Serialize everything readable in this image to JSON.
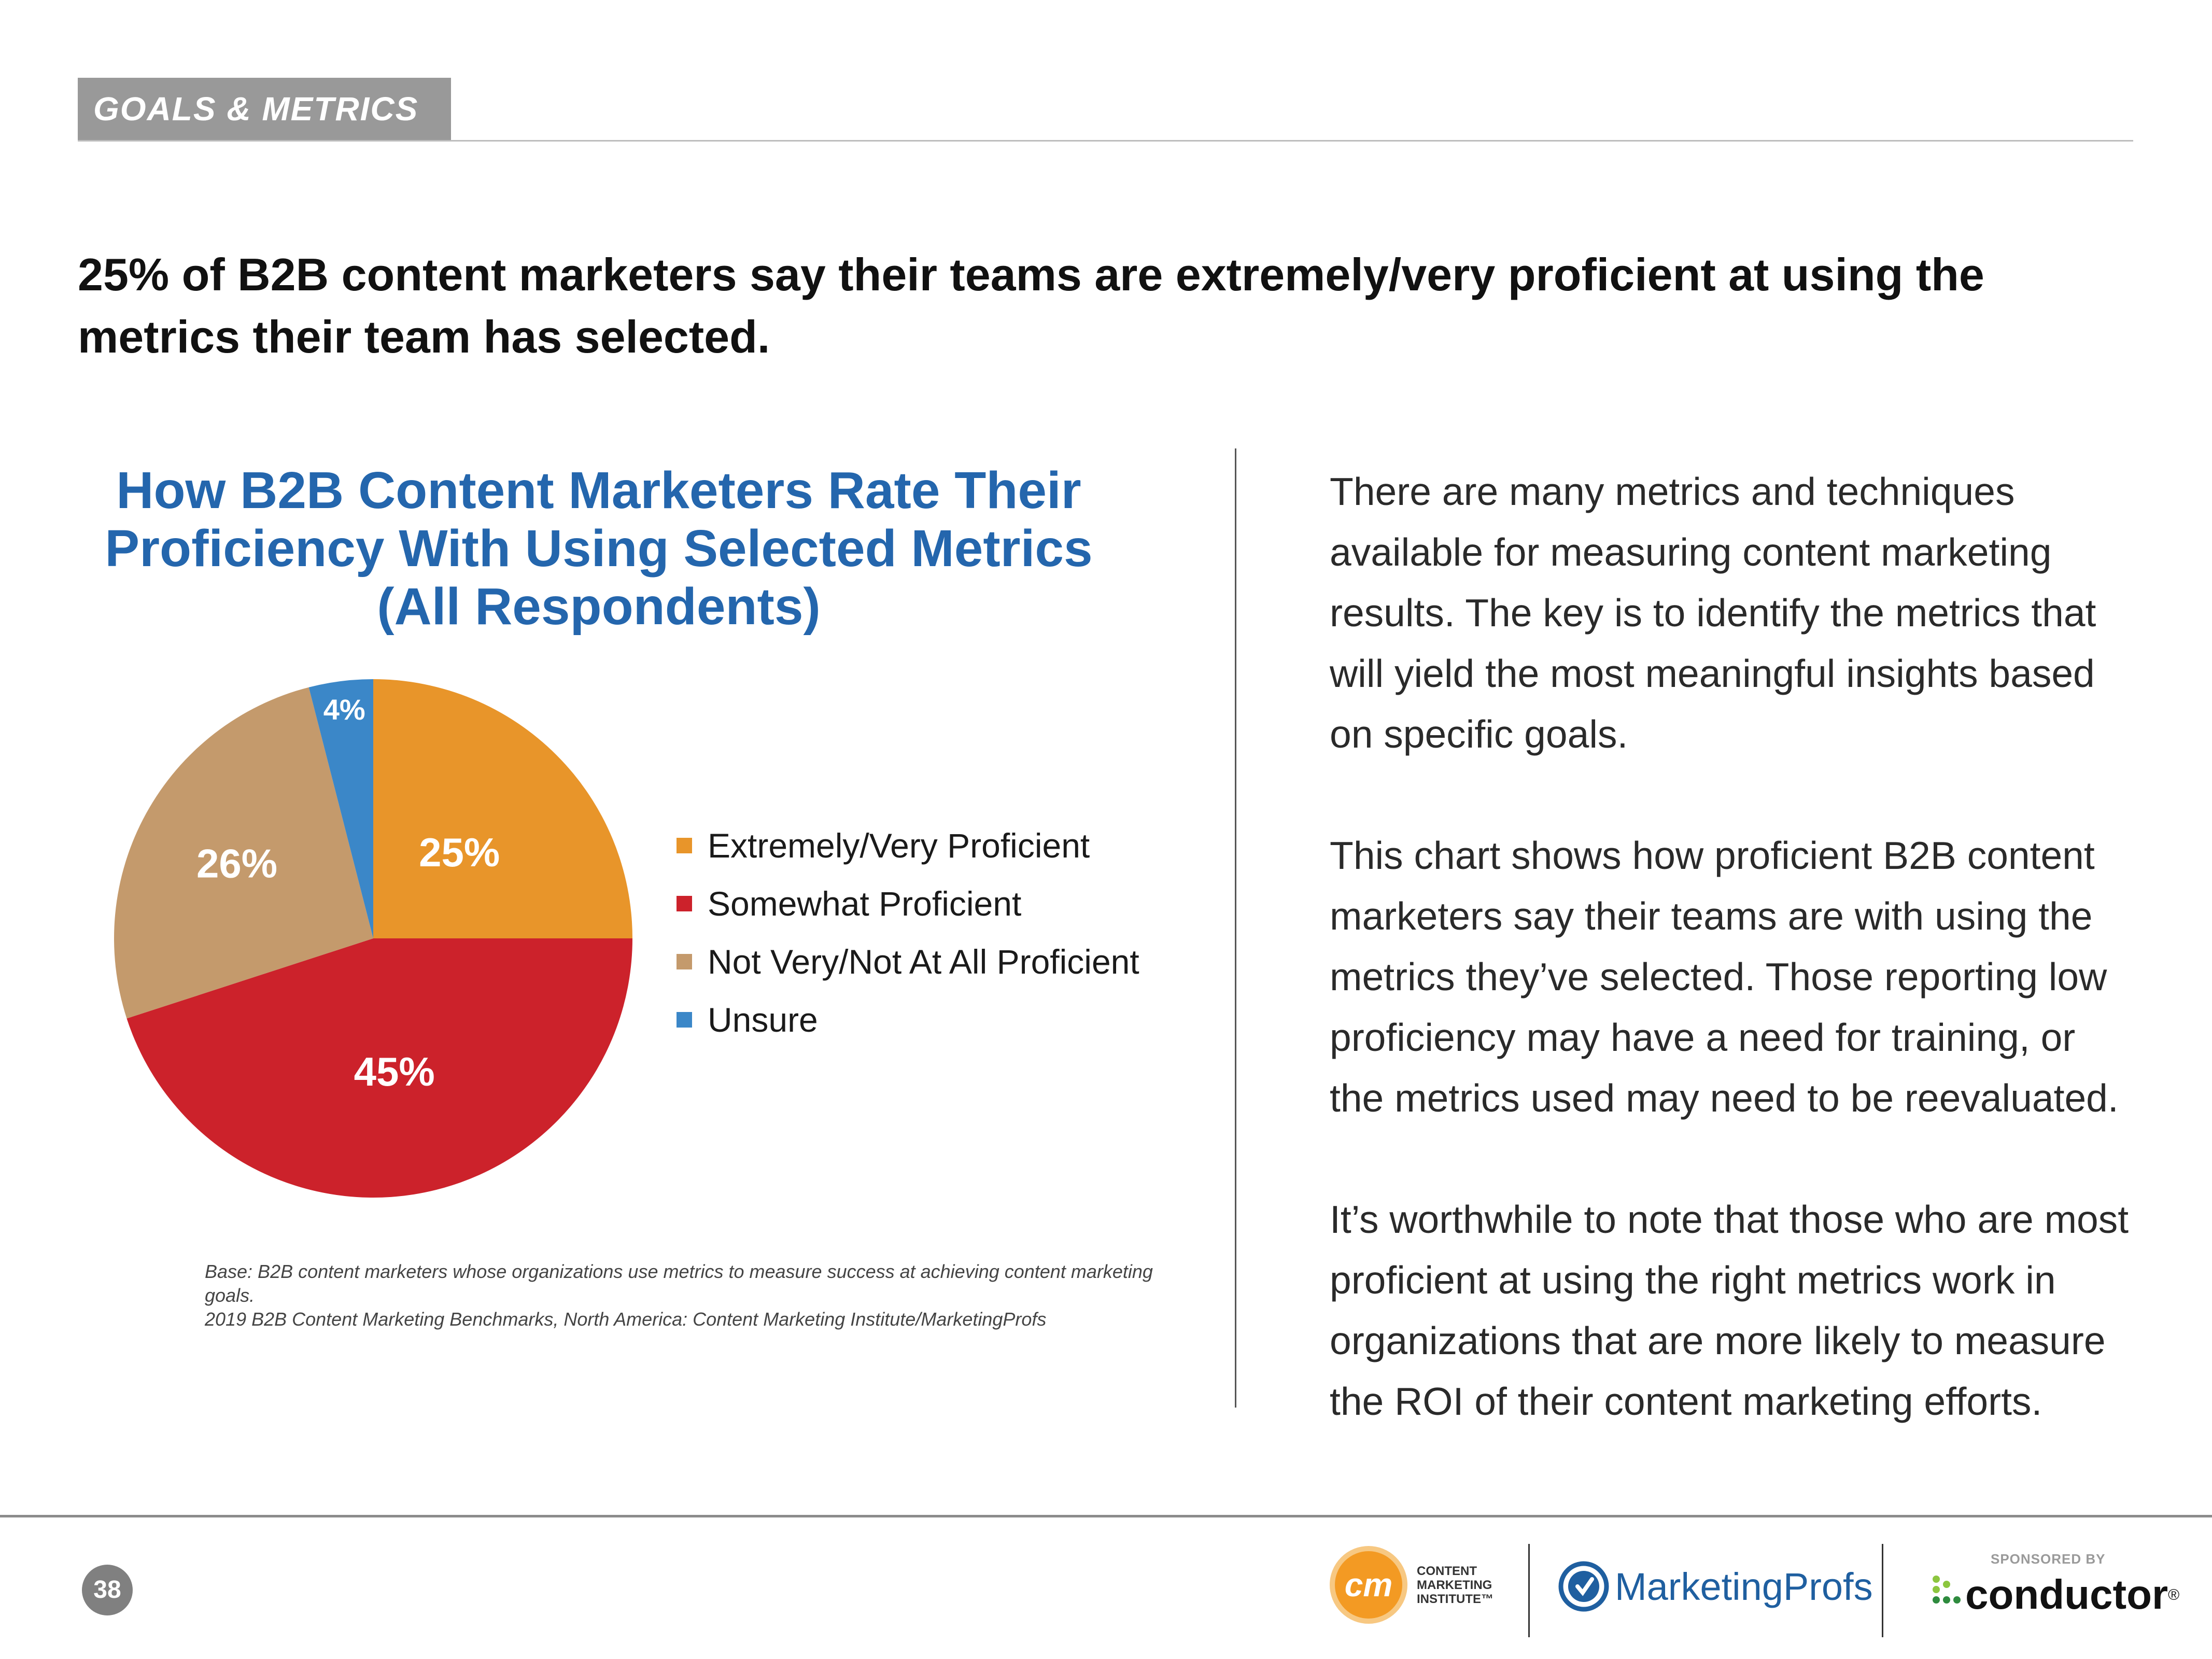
{
  "section": {
    "tag": "GOALS & METRICS"
  },
  "headline": "25% of B2B content marketers say their teams are extremely/very proficient at using the metrics their team has selected.",
  "chart_data": {
    "type": "pie",
    "title": "How B2B Content Marketers Rate Their Proficiency With Using Selected Metrics (All Respondents)",
    "categories": [
      "Extremely/Very Proficient",
      "Somewhat Proficient",
      "Not Very/Not At All Proficient",
      "Unsure"
    ],
    "values": [
      25,
      45,
      26,
      4
    ],
    "data_labels": [
      "25%",
      "45%",
      "26%",
      "4%"
    ],
    "colors": [
      "#e8952a",
      "#cc222b",
      "#c49a6c",
      "#3b87c8"
    ],
    "legend_position": "right",
    "base_note_line1": "Base: B2B content marketers whose organizations use metrics to measure success at achieving content marketing goals.",
    "base_note_line2": "2019 B2B Content Marketing Benchmarks, North America: Content Marketing Institute/MarketingProfs"
  },
  "body": {
    "paragraphs": [
      "There are many metrics and techniques available for measuring content marketing results. The key is to identify the metrics that will yield the most meaningful insights based on specific goals.",
      "This chart shows how proficient B2B content marketers say their teams are with using the metrics they’ve selected. Those reporting low proficiency may have a need for training, or the metrics used may need to be reevaluated.",
      "It’s worthwhile to note that those who are most proficient at using the right metrics work in organizations that are more likely to measure the ROI of their content marketing efforts."
    ]
  },
  "footer": {
    "page_number": "38",
    "cmi_mark": "cm",
    "cmi_line1": "CONTENT",
    "cmi_line2": "MARKETING",
    "cmi_line3": "INSTITUTE™",
    "marketingprofs": "MarketingProfs",
    "sponsored_by": "SPONSORED BY",
    "conductor": "conductor",
    "conductor_mark": "®"
  }
}
